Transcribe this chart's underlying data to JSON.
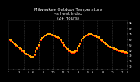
{
  "title": "Milwaukee Outdoor Temperature\nvs Heat Index\n(24 Hours)",
  "title_fontsize": 3.8,
  "title_color": "#ffffff",
  "background_color": "#000000",
  "plot_bg_color": "#000000",
  "x_min": 0,
  "x_max": 48,
  "y_min": 5,
  "y_max": 95,
  "y_ticks": [
    10,
    20,
    30,
    40,
    50,
    60,
    70,
    80,
    90
  ],
  "y_tick_fontsize": 2.5,
  "x_tick_fontsize": 2.5,
  "vline_color": "#666666",
  "vline_style": ":",
  "vline_positions": [
    6,
    12,
    18,
    24,
    30,
    36,
    42
  ],
  "temp_color": "#FFA500",
  "heat_color": "#FF2200",
  "black_color": "#000000",
  "temp_marker_size": 1.5,
  "heat_marker_size": 1.5,
  "temp_x": [
    0,
    0.5,
    1,
    1.5,
    2,
    2.5,
    3,
    3.5,
    4,
    4.5,
    5,
    5.5,
    6,
    6.5,
    7,
    7.5,
    8,
    8.5,
    9,
    9.5,
    10,
    10.5,
    11,
    11.5,
    12,
    12.5,
    13,
    13.5,
    14,
    14.5,
    15,
    15.5,
    16,
    16.5,
    17,
    17.5,
    18,
    18.5,
    19,
    19.5,
    20,
    20.5,
    21,
    21.5,
    22,
    22.5,
    23,
    23.5,
    24,
    24.5,
    25,
    25.5,
    26,
    26.5,
    27,
    27.5,
    28,
    28.5,
    29,
    29.5,
    30,
    30.5,
    31,
    31.5,
    32,
    32.5,
    33,
    33.5,
    34,
    34.5,
    35,
    35.5,
    36,
    36.5,
    37,
    37.5,
    38,
    38.5,
    39,
    39.5,
    40,
    40.5,
    41,
    41.5,
    42,
    42.5,
    43,
    43.5,
    44,
    44.5,
    45,
    45.5,
    46,
    46.5,
    47,
    47.5,
    48
  ],
  "temp_y": [
    62,
    60,
    58,
    56,
    54,
    52,
    50,
    48,
    46,
    44,
    42,
    40,
    38,
    36,
    34,
    33,
    32,
    30,
    28,
    27,
    28,
    32,
    38,
    44,
    50,
    55,
    60,
    63,
    65,
    67,
    68,
    69,
    70,
    70,
    70,
    69,
    68,
    67,
    66,
    65,
    64,
    63,
    60,
    57,
    54,
    50,
    47,
    44,
    42,
    40,
    38,
    37,
    37,
    37,
    38,
    40,
    44,
    48,
    53,
    58,
    62,
    65,
    67,
    68,
    69,
    70,
    70,
    70,
    69,
    68,
    67,
    66,
    65,
    64,
    62,
    60,
    58,
    56,
    54,
    52,
    50,
    48,
    47,
    46,
    45,
    44,
    43,
    42,
    41,
    40,
    40,
    39,
    38,
    38,
    37,
    37,
    36
  ],
  "heat_x": [
    0,
    0.5,
    1,
    1.5,
    2,
    2.5,
    3,
    3.5,
    4,
    4.5,
    5,
    5.5,
    6,
    6.5,
    7,
    7.5,
    8,
    8.5,
    9,
    9.5,
    10,
    10.5,
    11,
    11.5,
    12,
    12.5,
    13,
    13.5,
    14,
    14.5,
    15,
    15.5,
    16,
    16.5,
    17,
    17.5,
    18,
    18.5,
    19,
    19.5,
    20,
    20.5,
    21,
    21.5,
    22,
    22.5,
    23,
    23.5,
    24,
    24.5,
    25,
    25.5,
    26,
    26.5,
    27,
    27.5,
    28,
    28.5,
    29,
    29.5,
    30,
    30.5,
    31,
    31.5,
    32,
    32.5,
    33,
    33.5,
    34,
    34.5,
    35,
    35.5,
    36,
    36.5,
    37,
    37.5,
    38,
    38.5,
    39,
    39.5,
    40,
    40.5,
    41,
    41.5,
    42,
    42.5,
    43,
    43.5,
    44,
    44.5,
    45,
    45.5,
    46,
    46.5,
    47,
    47.5,
    48
  ],
  "heat_y": [
    61,
    59,
    57,
    55,
    53,
    51,
    49,
    47,
    45,
    43,
    41,
    39,
    37,
    35,
    33,
    32,
    31,
    29,
    27,
    26,
    27,
    31,
    37,
    43,
    49,
    54,
    59,
    62,
    64,
    66,
    67,
    68,
    69,
    69,
    69,
    68,
    67,
    66,
    65,
    64,
    63,
    62,
    59,
    56,
    53,
    49,
    46,
    43,
    41,
    39,
    37,
    36,
    36,
    36,
    37,
    39,
    43,
    47,
    52,
    57,
    61,
    64,
    66,
    67,
    68,
    69,
    69,
    69,
    68,
    67,
    66,
    65,
    64,
    63,
    61,
    59,
    57,
    55,
    53,
    51,
    49,
    47,
    46,
    45,
    44,
    43,
    42,
    41,
    40,
    39,
    39,
    38,
    37,
    37,
    36,
    36,
    35
  ],
  "x_tick_labels": [
    "1",
    "",
    "3",
    "",
    "5",
    "6",
    "",
    "8",
    "",
    "10",
    "",
    "12",
    "1",
    "",
    "3",
    "",
    "5",
    "6",
    "",
    "8",
    "",
    "10",
    "",
    "12",
    "1"
  ],
  "x_tick_positions": [
    0,
    2,
    4,
    6,
    8,
    10,
    12,
    14,
    16,
    18,
    20,
    22,
    24,
    26,
    28,
    30,
    32,
    34,
    36,
    38,
    40,
    42,
    44,
    46,
    48
  ]
}
